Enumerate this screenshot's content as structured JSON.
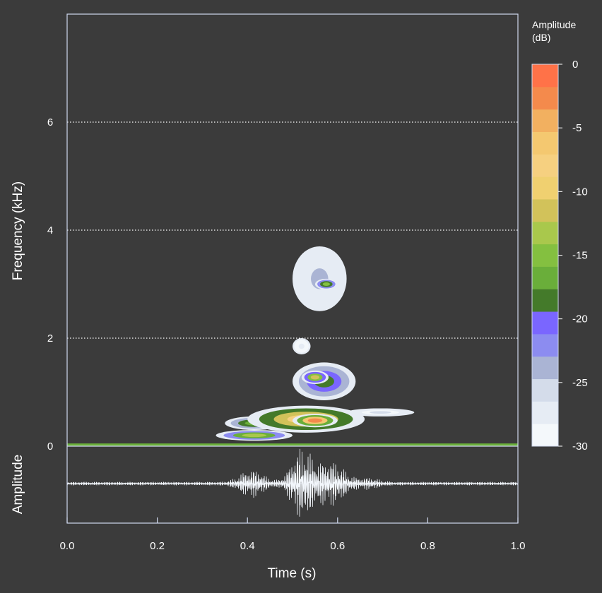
{
  "chart_data": {
    "type": "heatmap",
    "subtype": "spectrogram-with-oscillogram",
    "xlabel": "Time (s)",
    "ylabel": "Frequency (kHz)",
    "oscillogram_label": "Amplitude",
    "xlim": [
      0,
      1.0
    ],
    "ylim": [
      0,
      8
    ],
    "x_ticks": [
      "0.0",
      "0.2",
      "0.4",
      "0.6",
      "0.8",
      "1.0"
    ],
    "x_tick_values": [
      0,
      0.2,
      0.4,
      0.6,
      0.8,
      1.0
    ],
    "y_ticks": [
      "0",
      "2",
      "4",
      "6"
    ],
    "y_tick_values": [
      0,
      2,
      4,
      6
    ],
    "grid": "horizontal dotted at 2, 4, 6 kHz",
    "colorbar": {
      "title": "Amplitude",
      "title_unit": "(dB)",
      "range": [
        -30,
        0
      ],
      "ticks": [
        "0",
        "-5",
        "-10",
        "-15",
        "-20",
        "-25",
        "-30"
      ],
      "tick_values": [
        0,
        -5,
        -10,
        -15,
        -20,
        -25,
        -30
      ],
      "colors": [
        "#f4f8fb",
        "#e6ecf4",
        "#d4dcea",
        "#aab4d4",
        "#8c8cf0",
        "#7a66ff",
        "#447a2a",
        "#6aae3a",
        "#84c040",
        "#a9c84c",
        "#d2c25a",
        "#f0d070",
        "#f6d080",
        "#f4c870",
        "#f2b060",
        "#f48a4c",
        "#ff7248"
      ]
    },
    "features": [
      {
        "t0": 0.33,
        "t1": 0.5,
        "f0": 0.1,
        "f1": 0.3,
        "db": -14
      },
      {
        "t0": 0.35,
        "t1": 0.48,
        "f0": 0.3,
        "f1": 0.55,
        "db": -16
      },
      {
        "t0": 0.4,
        "t1": 0.66,
        "f0": 0.25,
        "f1": 0.75,
        "db": -8
      },
      {
        "t0": 0.5,
        "t1": 0.6,
        "f0": 0.35,
        "f1": 0.6,
        "db": -3
      },
      {
        "t0": 0.62,
        "t1": 0.77,
        "f0": 0.55,
        "f1": 0.7,
        "db": -26
      },
      {
        "t0": 0.5,
        "t1": 0.64,
        "f0": 0.85,
        "f1": 1.55,
        "db": -18
      },
      {
        "t0": 0.52,
        "t1": 0.58,
        "f0": 1.15,
        "f1": 1.4,
        "db": -12
      },
      {
        "t0": 0.5,
        "t1": 0.62,
        "f0": 2.5,
        "f1": 3.7,
        "db": -24
      },
      {
        "t0": 0.55,
        "t1": 0.6,
        "f0": 2.9,
        "f1": 3.1,
        "db": -15
      },
      {
        "t0": 0.5,
        "t1": 0.54,
        "f0": 1.7,
        "f1": 2.0,
        "db": -28
      }
    ]
  }
}
